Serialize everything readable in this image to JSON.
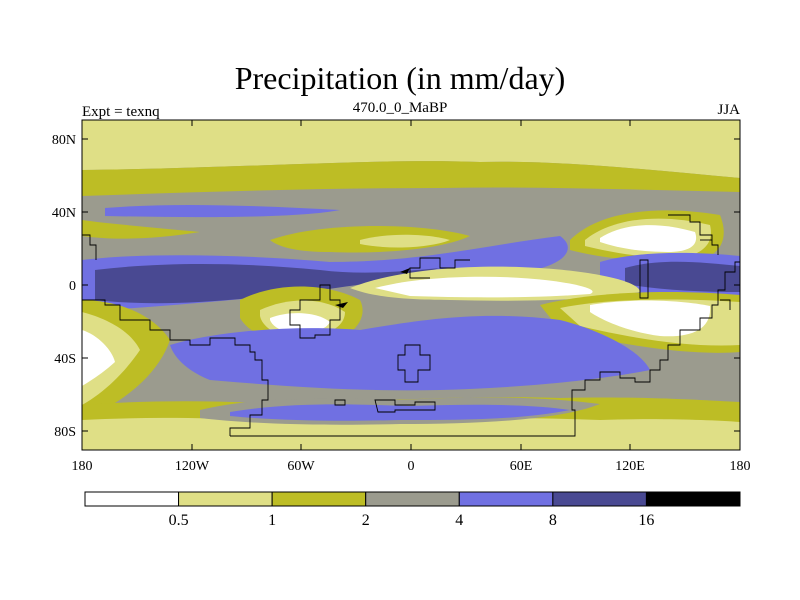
{
  "title": "Precipitation (in mm/day)",
  "experiment_label": "Expt = texnq",
  "period_label": "470.0_0_MaBP",
  "season_label": "JJA",
  "lat_ticks": [
    {
      "label": "80N",
      "value": 80
    },
    {
      "label": "40N",
      "value": 40
    },
    {
      "label": "0",
      "value": 0
    },
    {
      "label": "40S",
      "value": -40
    },
    {
      "label": "80S",
      "value": -80
    }
  ],
  "lon_ticks": [
    {
      "label": "180",
      "value": -180
    },
    {
      "label": "120W",
      "value": -120
    },
    {
      "label": "60W",
      "value": -60
    },
    {
      "label": "0",
      "value": 0
    },
    {
      "label": "60E",
      "value": 60
    },
    {
      "label": "120E",
      "value": 120
    },
    {
      "label": "180",
      "value": 180
    }
  ],
  "legend": {
    "colors": [
      "#ffffff",
      "#dfdf86",
      "#bdbd25",
      "#9b9b8e",
      "#7070e2",
      "#494992",
      "#000000"
    ],
    "boundaries": [
      "0.5",
      "1",
      "2",
      "4",
      "8",
      "16"
    ]
  }
}
